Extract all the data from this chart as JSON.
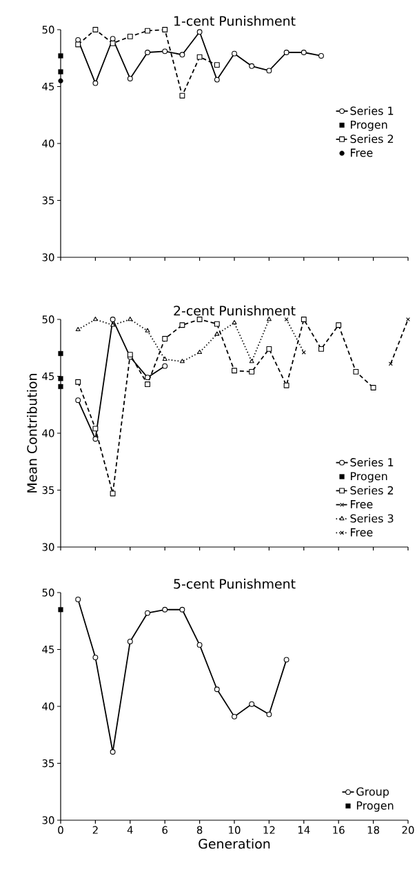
{
  "chart_data": [
    {
      "type": "line",
      "title": "1-cent Punishment",
      "xlim": [
        0,
        20
      ],
      "ylim": [
        30,
        50
      ],
      "xticks": [
        0,
        2,
        4,
        6,
        8,
        10,
        12,
        14,
        16,
        18,
        20
      ],
      "yticks": [
        30,
        35,
        40,
        45,
        50
      ],
      "tick_labels": "y",
      "legend": "right",
      "series": [
        {
          "name": "Series 1",
          "color": "#000000",
          "marker": "circle",
          "line_style": "solid",
          "x": [
            1,
            2,
            3,
            4,
            5,
            6,
            7,
            8,
            9,
            10,
            11,
            12,
            13,
            14,
            15
          ],
          "values": [
            49.1,
            45.3,
            49.2,
            45.7,
            48.0,
            48.1,
            47.8,
            49.8,
            45.6,
            47.9,
            46.8,
            46.4,
            48.0,
            48.0,
            47.7
          ]
        },
        {
          "name": "Progen",
          "type": "scatter",
          "color": "#000000",
          "marker": "square",
          "x": [
            0,
            0
          ],
          "values": [
            47.7,
            46.3
          ]
        },
        {
          "name": "Series 2",
          "color": "#000000",
          "marker": "square",
          "line_style": "dashed",
          "x": [
            1,
            2,
            3,
            4,
            5,
            6,
            7,
            8,
            9
          ],
          "values": [
            48.7,
            50.0,
            48.8,
            49.4,
            49.9,
            50.0,
            44.2,
            47.6,
            46.9
          ]
        },
        {
          "name": "Free",
          "type": "scatter",
          "color": "#000000",
          "marker": "circle",
          "x": [
            0
          ],
          "values": [
            45.5
          ]
        }
      ]
    },
    {
      "type": "line",
      "title": "2-cent Punishment",
      "ylabel": "Mean Contribution",
      "xlim": [
        0,
        20
      ],
      "ylim": [
        30,
        50
      ],
      "xticks": [
        0,
        2,
        4,
        6,
        8,
        10,
        12,
        14,
        16,
        18,
        20
      ],
      "yticks": [
        30,
        35,
        40,
        45,
        50
      ],
      "tick_labels": "y",
      "legend": "bottom right",
      "series": [
        {
          "name": "Series 1",
          "color": "#000000",
          "marker": "circle",
          "line_style": "solid",
          "x": [
            1,
            2,
            3,
            4,
            5,
            6
          ],
          "values": [
            42.9,
            39.5,
            50.0,
            46.7,
            44.9,
            45.9
          ]
        },
        {
          "name": "Progen",
          "type": "scatter",
          "color": "#000000",
          "marker": "square",
          "x": [
            0,
            0,
            0
          ],
          "values": [
            47.0,
            44.8,
            44.1
          ]
        },
        {
          "name": "Series 2",
          "color": "#000000",
          "marker": "square",
          "line_style": "dashed",
          "x": [
            1,
            2,
            3,
            4,
            5,
            6,
            7,
            8,
            9,
            10,
            11,
            12,
            13,
            14,
            15,
            16,
            17,
            18
          ],
          "values": [
            44.5,
            40.4,
            34.7,
            46.9,
            44.3,
            48.3,
            49.5,
            50.0,
            49.6,
            45.5,
            45.4,
            47.4,
            44.2,
            50.0,
            47.4,
            49.5,
            45.4,
            44.0
          ]
        },
        {
          "name": "Free",
          "color": "#000000",
          "marker": "cross",
          "line_style": "dashed",
          "x": [
            19,
            20
          ],
          "values": [
            46.1,
            50.0
          ]
        },
        {
          "name": "Series 3",
          "color": "#000000",
          "marker": "triangle",
          "line_style": "dotted",
          "x": [
            1,
            2,
            3,
            4,
            5,
            6,
            7,
            8,
            9,
            10,
            11,
            12
          ],
          "values": [
            49.1,
            50.0,
            49.5,
            50.0,
            49.0,
            46.5,
            46.3,
            47.1,
            48.7,
            49.7,
            46.3,
            50.0
          ]
        },
        {
          "name": "Free",
          "color": "#000000",
          "marker": "cross",
          "line_style": "dotted",
          "x": [
            13,
            14
          ],
          "values": [
            50.0,
            47.1
          ]
        }
      ]
    },
    {
      "type": "line",
      "title": "5-cent Punishment",
      "xlabel": "Generation",
      "xlim": [
        0,
        20
      ],
      "ylim": [
        30,
        50
      ],
      "xticks": [
        0,
        2,
        4,
        6,
        8,
        10,
        12,
        14,
        16,
        18,
        20
      ],
      "yticks": [
        30,
        35,
        40,
        45,
        50
      ],
      "legend": "bottom right",
      "series": [
        {
          "name": "Group",
          "color": "#000000",
          "marker": "circle",
          "line_style": "solid",
          "x": [
            1,
            2,
            3,
            4,
            5,
            6,
            7,
            8,
            9,
            10,
            11,
            12,
            13
          ],
          "values": [
            49.4,
            44.3,
            36.0,
            45.7,
            48.2,
            48.5,
            48.5,
            45.4,
            41.5,
            39.1,
            40.2,
            39.3,
            44.1
          ]
        },
        {
          "name": "Progen",
          "type": "scatter",
          "color": "#000000",
          "marker": "square",
          "x": [
            0
          ],
          "values": [
            48.5
          ]
        }
      ]
    }
  ]
}
